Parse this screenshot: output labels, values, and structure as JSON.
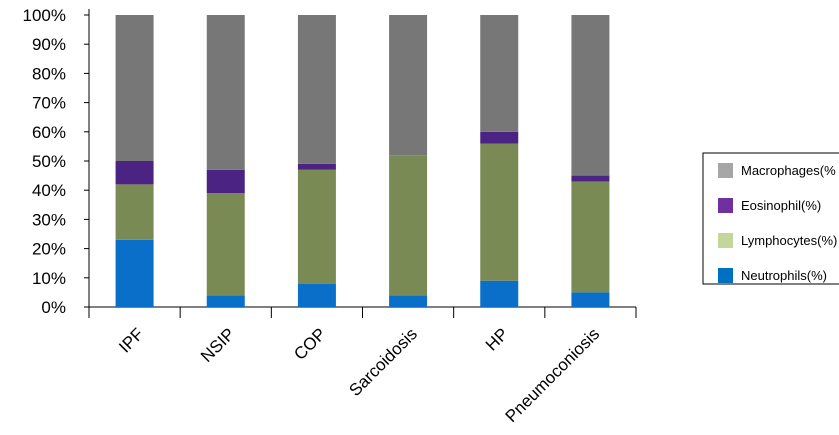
{
  "chart_data": {
    "type": "bar",
    "stacked": true,
    "percent": true,
    "title": "",
    "xlabel": "",
    "ylabel": "",
    "ylim": [
      0,
      100
    ],
    "yticks": [
      "0%",
      "10%",
      "20%",
      "30%",
      "40%",
      "50%",
      "60%",
      "70%",
      "80%",
      "90%",
      "100%"
    ],
    "grid": false,
    "legend_position": "right",
    "categories": [
      "IPF",
      "NSIP",
      "COP",
      "Sarcoidosis",
      "HP",
      "Pneumoconiosis"
    ],
    "series": [
      {
        "name": "Neutrophils(%)",
        "color": "#0a6fc8",
        "values": [
          23,
          4,
          8,
          4,
          9,
          5
        ]
      },
      {
        "name": "Lymphocytes(%)",
        "color": "#7a8a55",
        "values": [
          19,
          35,
          39,
          48,
          47,
          38
        ]
      },
      {
        "name": "Eosinophil(%)",
        "color": "#4b2383",
        "values": [
          8,
          8,
          2,
          0,
          4,
          2
        ]
      },
      {
        "name": "Macrophages(%",
        "color": "#777777",
        "values": [
          50,
          53,
          51,
          48,
          40,
          55
        ]
      }
    ],
    "legend_order": [
      3,
      2,
      1,
      0
    ],
    "legend_colors": [
      "#a6a6a6",
      "#7030a0",
      "#c3d69b",
      "#0070c0"
    ]
  }
}
